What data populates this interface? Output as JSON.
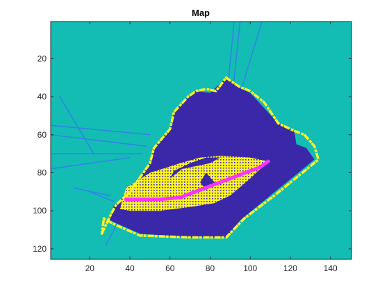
{
  "chart_data": {
    "type": "heatmap",
    "title": "Map",
    "xlabel": "",
    "ylabel": "",
    "xlim": [
      0.5,
      150.5
    ],
    "ylim": [
      0.5,
      125.5
    ],
    "y_reversed": true,
    "x_ticks": [
      20,
      40,
      60,
      80,
      100,
      120,
      140
    ],
    "y_ticks": [
      20,
      40,
      60,
      80,
      100,
      120
    ],
    "colors": {
      "unknown": "#13bdb4",
      "free": "#3a28a8",
      "occupied": "#fdf227",
      "path": "#ff33ff",
      "ray": "#2f86e4"
    },
    "regions": [
      {
        "name": "free-space",
        "class": "free",
        "polygon": [
          [
            32,
            97
          ],
          [
            40,
            90
          ],
          [
            50,
            75
          ],
          [
            52,
            67
          ],
          [
            60,
            57
          ],
          [
            62,
            48
          ],
          [
            69,
            40
          ],
          [
            73,
            37
          ],
          [
            80,
            38
          ],
          [
            88,
            30
          ],
          [
            94,
            35
          ],
          [
            100,
            38
          ],
          [
            114,
            54
          ],
          [
            122,
            58
          ],
          [
            123,
            65
          ],
          [
            128,
            67
          ],
          [
            132,
            73
          ],
          [
            124,
            80
          ],
          [
            110,
            92
          ],
          [
            95,
            105
          ],
          [
            88,
            114
          ],
          [
            70,
            114
          ],
          [
            45,
            112
          ],
          [
            30,
            105
          ]
        ]
      },
      {
        "name": "obstacle-grid",
        "class": "occupied",
        "polygon": [
          [
            35,
            99
          ],
          [
            38,
            88
          ],
          [
            50,
            80
          ],
          [
            65,
            75
          ],
          [
            75,
            72
          ],
          [
            85,
            71
          ],
          [
            100,
            72
          ],
          [
            109,
            74
          ],
          [
            100,
            83
          ],
          [
            90,
            92
          ],
          [
            82,
            96
          ],
          [
            70,
            98
          ],
          [
            55,
            100
          ],
          [
            40,
            100
          ]
        ]
      }
    ],
    "walls": [
      [
        [
          26,
          112
        ],
        [
          30,
          103
        ],
        [
          33,
          97
        ],
        [
          40,
          90
        ],
        [
          50,
          75
        ],
        [
          52,
          67
        ],
        [
          60,
          57
        ],
        [
          62,
          48
        ],
        [
          69,
          40
        ],
        [
          73,
          37
        ],
        [
          78,
          36
        ],
        [
          83,
          37
        ],
        [
          88,
          30
        ],
        [
          92,
          33
        ],
        [
          95,
          35
        ],
        [
          100,
          37
        ],
        [
          107,
          43
        ],
        [
          114,
          54
        ],
        [
          122,
          58
        ],
        [
          127,
          60
        ],
        [
          132,
          66
        ],
        [
          134,
          73
        ],
        [
          126,
          80
        ],
        [
          112,
          92
        ],
        [
          97,
          104
        ],
        [
          88,
          114
        ],
        [
          70,
          114
        ],
        [
          45,
          113
        ],
        [
          32,
          107
        ],
        [
          27,
          104
        ]
      ]
    ],
    "interior_free": [
      [
        [
          60,
          83
        ],
        [
          66,
          78
        ],
        [
          80,
          75
        ],
        [
          85,
          72
        ],
        [
          78,
          72
        ],
        [
          70,
          75
        ],
        [
          62,
          79
        ]
      ],
      [
        [
          75,
          85
        ],
        [
          78,
          80
        ],
        [
          83,
          86
        ],
        [
          78,
          89
        ]
      ],
      [
        [
          91,
          38
        ],
        [
          95,
          40
        ],
        [
          95,
          62
        ],
        [
          92,
          63
        ]
      ]
    ],
    "rays": [
      [
        [
          88,
          44
        ],
        [
          92,
          0
        ]
      ],
      [
        [
          91,
          40
        ],
        [
          95,
          0
        ]
      ],
      [
        [
          95,
          38
        ],
        [
          106,
          0
        ]
      ],
      [
        [
          0,
          55
        ],
        [
          50,
          60
        ]
      ],
      [
        [
          0,
          60
        ],
        [
          48,
          66
        ]
      ],
      [
        [
          0,
          70
        ],
        [
          46,
          70
        ]
      ],
      [
        [
          0,
          78
        ],
        [
          40,
          72
        ]
      ],
      [
        [
          5,
          40
        ],
        [
          22,
          70
        ]
      ],
      [
        [
          12,
          88
        ],
        [
          30,
          92
        ]
      ],
      [
        [
          20,
          90
        ],
        [
          32,
          95
        ]
      ],
      [
        [
          28,
          118
        ],
        [
          34,
          106
        ]
      ]
    ],
    "path": {
      "x": [
        38,
        45,
        55,
        65,
        70,
        75,
        80,
        85,
        90,
        95,
        100,
        105,
        109
      ],
      "y": [
        94,
        94,
        94,
        93,
        91,
        89,
        87,
        85,
        83,
        81,
        79,
        77,
        74
      ]
    }
  }
}
